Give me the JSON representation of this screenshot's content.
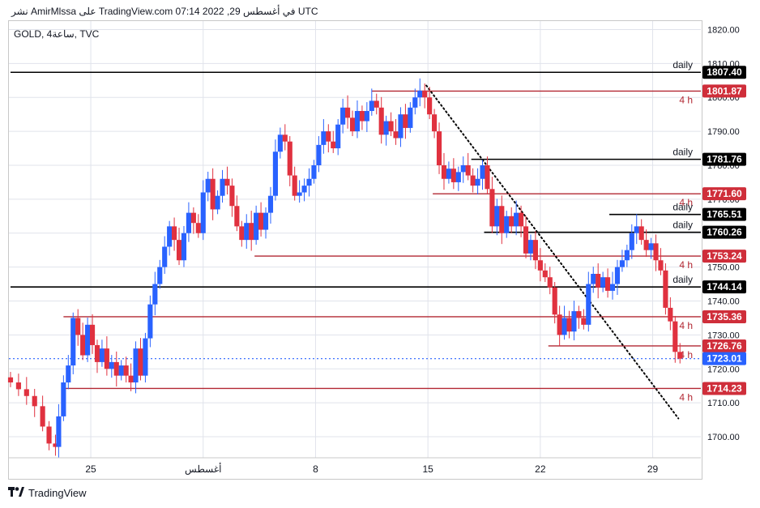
{
  "header": {
    "text": "نشر AmirMlssa على TradingView.com في أغسطس 29, 2022 07:14 UTC"
  },
  "symbol_label": "GOLD, 4ساعة, TVC",
  "footer": {
    "brand": "TradingView",
    "logo": "tv-logo-icon"
  },
  "colors": {
    "bull": "#2962ff",
    "bear": "#e0313f",
    "daily_line": "#000000",
    "h4_line": "#b22833",
    "daily_badge": "#000000",
    "h4_badge": "#cf2e3a",
    "current_badge": "#2962ff",
    "grid": "#e0e3eb",
    "trendline": "#000000"
  },
  "chart_data": {
    "type": "candlestick",
    "y_axis": {
      "ticks": [
        1700,
        1710,
        1720,
        1730,
        1740,
        1750,
        1760,
        1770,
        1780,
        1790,
        1800,
        1810,
        1820
      ],
      "tick_labels": [
        "1700.00",
        "1710.00",
        "1720.00",
        "1730.00",
        "1740.00",
        "1750.00",
        "1760.00",
        "1770.00",
        "1780.00",
        "1790.00",
        "1800.00",
        "1810.00",
        "1820.00"
      ],
      "range": [
        1693.8,
        1822.5
      ]
    },
    "x_axis": {
      "tick_labels": [
        "25",
        "أغسطس",
        "8",
        "15",
        "22",
        "29"
      ],
      "tick_days": [
        25,
        32,
        39,
        46,
        53,
        60
      ]
    },
    "grid": true,
    "levels": [
      {
        "price": 1807.4,
        "label": "1807.40",
        "tag": "daily",
        "kind": "daily",
        "from_day": 20.0
      },
      {
        "price": 1801.87,
        "label": "1801.87",
        "tag": "4 h",
        "kind": "h4",
        "from_day": 42.5
      },
      {
        "price": 1781.76,
        "label": "1781.76",
        "tag": "daily",
        "kind": "daily",
        "from_day": 48.7
      },
      {
        "price": 1771.6,
        "label": "1771.60",
        "tag": "4 h",
        "kind": "h4",
        "from_day": 46.3
      },
      {
        "price": 1765.51,
        "label": "1765.51",
        "tag": "daily",
        "kind": "daily",
        "from_day": 57.3
      },
      {
        "price": 1760.26,
        "label": "1760.26",
        "tag": "daily",
        "kind": "daily",
        "from_day": 49.5
      },
      {
        "price": 1753.24,
        "label": "1753.24",
        "tag": "4 h",
        "kind": "h4",
        "from_day": 35.2
      },
      {
        "price": 1744.14,
        "label": "1744.14",
        "tag": "daily",
        "kind": "daily",
        "from_day": 20.0
      },
      {
        "price": 1735.36,
        "label": "1735.36",
        "tag": "4 h",
        "kind": "h4",
        "from_day": 23.3
      },
      {
        "price": 1726.76,
        "label": "1726.76",
        "tag": "4 h",
        "kind": "h4",
        "from_day": 53.5
      },
      {
        "price": 1714.23,
        "label": "1714.23",
        "tag": "4 h",
        "kind": "h4",
        "from_day": 23.3
      }
    ],
    "current_price": {
      "price": 1723.01,
      "label": "1723.01"
    },
    "trendline": {
      "from": {
        "day": 45.9,
        "price": 1803.5
      },
      "to": {
        "day": 61.6,
        "price": 1705.4
      }
    },
    "close_points": [
      [
        20.0,
        1716
      ],
      [
        20.5,
        1714
      ],
      [
        21.0,
        1712
      ],
      [
        21.5,
        1709
      ],
      [
        22.0,
        1703
      ],
      [
        22.4,
        1698
      ],
      [
        22.8,
        1697
      ],
      [
        23.0,
        1706
      ],
      [
        23.3,
        1716
      ],
      [
        23.6,
        1721
      ],
      [
        23.9,
        1735
      ],
      [
        24.2,
        1730
      ],
      [
        24.5,
        1724
      ],
      [
        24.8,
        1733
      ],
      [
        25.1,
        1727
      ],
      [
        25.4,
        1722
      ],
      [
        25.7,
        1726
      ],
      [
        26.0,
        1720
      ],
      [
        26.3,
        1722
      ],
      [
        26.6,
        1718
      ],
      [
        26.9,
        1721
      ],
      [
        27.2,
        1718
      ],
      [
        27.5,
        1716
      ],
      [
        27.8,
        1726
      ],
      [
        28.1,
        1718
      ],
      [
        28.4,
        1729
      ],
      [
        28.7,
        1739
      ],
      [
        29.0,
        1745
      ],
      [
        29.3,
        1750
      ],
      [
        29.6,
        1756
      ],
      [
        29.9,
        1762
      ],
      [
        30.2,
        1758
      ],
      [
        30.5,
        1752
      ],
      [
        30.8,
        1760
      ],
      [
        31.1,
        1766
      ],
      [
        31.4,
        1763
      ],
      [
        31.7,
        1760
      ],
      [
        32.0,
        1772
      ],
      [
        32.3,
        1776
      ],
      [
        32.6,
        1767
      ],
      [
        32.9,
        1771
      ],
      [
        33.2,
        1776
      ],
      [
        33.5,
        1774
      ],
      [
        33.8,
        1768
      ],
      [
        34.1,
        1762
      ],
      [
        34.4,
        1758
      ],
      [
        34.7,
        1763
      ],
      [
        35.0,
        1758
      ],
      [
        35.3,
        1766
      ],
      [
        35.6,
        1761
      ],
      [
        35.9,
        1766
      ],
      [
        36.2,
        1771
      ],
      [
        36.5,
        1784
      ],
      [
        36.8,
        1789
      ],
      [
        37.1,
        1787
      ],
      [
        37.4,
        1777
      ],
      [
        37.7,
        1771
      ],
      [
        38.0,
        1772
      ],
      [
        38.3,
        1774
      ],
      [
        38.6,
        1776
      ],
      [
        38.9,
        1780
      ],
      [
        39.2,
        1786
      ],
      [
        39.5,
        1790
      ],
      [
        39.8,
        1787
      ],
      [
        40.1,
        1785
      ],
      [
        40.4,
        1792
      ],
      [
        40.7,
        1797
      ],
      [
        41.0,
        1794
      ],
      [
        41.3,
        1790
      ],
      [
        41.6,
        1796
      ],
      [
        41.9,
        1793
      ],
      [
        42.2,
        1796
      ],
      [
        42.5,
        1799
      ],
      [
        42.8,
        1797
      ],
      [
        43.1,
        1789
      ],
      [
        43.4,
        1793
      ],
      [
        43.7,
        1790
      ],
      [
        44.0,
        1788
      ],
      [
        44.3,
        1795
      ],
      [
        44.6,
        1791
      ],
      [
        44.9,
        1797
      ],
      [
        45.2,
        1800
      ],
      [
        45.5,
        1802
      ],
      [
        45.8,
        1800
      ],
      [
        46.1,
        1795
      ],
      [
        46.4,
        1790
      ],
      [
        46.7,
        1780
      ],
      [
        47.0,
        1776
      ],
      [
        47.3,
        1779
      ],
      [
        47.6,
        1775
      ],
      [
        47.9,
        1778
      ],
      [
        48.2,
        1780
      ],
      [
        48.5,
        1777
      ],
      [
        48.8,
        1774
      ],
      [
        49.1,
        1776
      ],
      [
        49.4,
        1780
      ],
      [
        49.7,
        1773
      ],
      [
        50.0,
        1762
      ],
      [
        50.3,
        1768
      ],
      [
        50.6,
        1760
      ],
      [
        50.9,
        1765
      ],
      [
        51.2,
        1762
      ],
      [
        51.5,
        1766
      ],
      [
        51.8,
        1762
      ],
      [
        52.1,
        1754
      ],
      [
        52.4,
        1758
      ],
      [
        52.7,
        1752
      ],
      [
        53.0,
        1749
      ],
      [
        53.3,
        1747
      ],
      [
        53.6,
        1744
      ],
      [
        53.9,
        1736
      ],
      [
        54.2,
        1730
      ],
      [
        54.5,
        1735
      ],
      [
        54.8,
        1731
      ],
      [
        55.1,
        1737
      ],
      [
        55.4,
        1735
      ],
      [
        55.7,
        1733
      ],
      [
        56.0,
        1745
      ],
      [
        56.3,
        1748
      ],
      [
        56.6,
        1744
      ],
      [
        56.9,
        1747
      ],
      [
        57.2,
        1743
      ],
      [
        57.5,
        1745
      ],
      [
        57.8,
        1750
      ],
      [
        58.1,
        1752
      ],
      [
        58.4,
        1755
      ],
      [
        58.7,
        1760
      ],
      [
        59.0,
        1762
      ],
      [
        59.3,
        1758
      ],
      [
        59.6,
        1755
      ],
      [
        59.9,
        1757
      ],
      [
        60.2,
        1752
      ],
      [
        60.5,
        1749
      ],
      [
        60.8,
        1738
      ],
      [
        61.1,
        1734
      ],
      [
        61.4,
        1725
      ],
      [
        61.7,
        1723
      ]
    ]
  }
}
